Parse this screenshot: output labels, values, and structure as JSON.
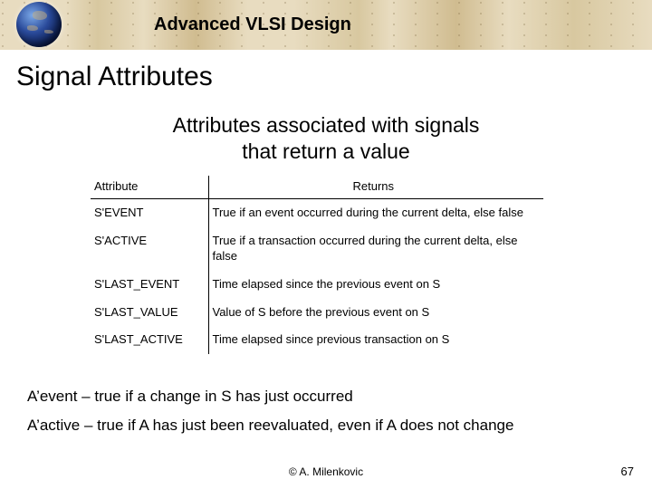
{
  "header": {
    "course_title": "Advanced VLSI Design"
  },
  "slide": {
    "title": "Signal Attributes",
    "subtitle_line1": "Attributes associated with signals",
    "subtitle_line2": "that return a value"
  },
  "table": {
    "col_attr": "Attribute",
    "col_ret": "Returns",
    "rows": [
      {
        "attr": "S'EVENT",
        "ret": "True if an event occurred during the current delta, else false"
      },
      {
        "attr": "S'ACTIVE",
        "ret": "True if a transaction occurred during the current delta, else false"
      },
      {
        "attr": "S'LAST_EVENT",
        "ret": "Time elapsed since the previous event on S"
      },
      {
        "attr": "S'LAST_VALUE",
        "ret": "Value of S before the previous event on S"
      },
      {
        "attr": "S'LAST_ACTIVE",
        "ret": "Time elapsed since previous transaction on S"
      }
    ]
  },
  "notes": {
    "n1": "A’event – true if a change in S has just occurred",
    "n2": "A’active – true if A has just been reevaluated, even if A does not change"
  },
  "footer": {
    "author": "©  A. Milenkovic",
    "page": "67"
  }
}
